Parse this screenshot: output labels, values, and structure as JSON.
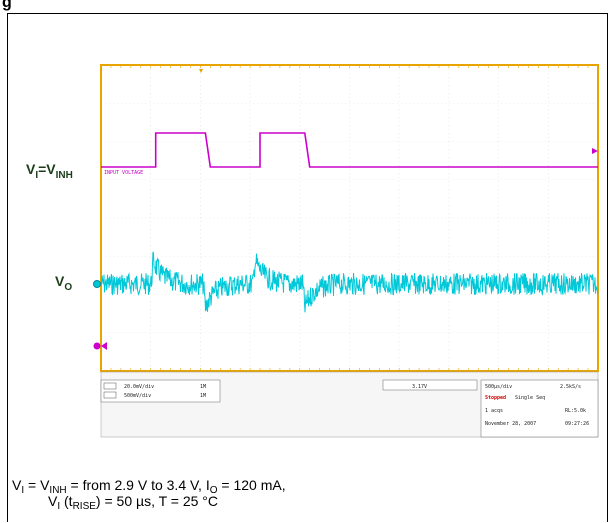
{
  "figure": {
    "title": "g",
    "labels": {
      "vi": {
        "main": "V",
        "sub1": "I",
        "eq": "=V",
        "sub2": "INH"
      },
      "vo": {
        "main": "V",
        "sub": "O"
      }
    },
    "trace_annotation": "INPUT VOLTAGE",
    "caption": {
      "line1": {
        "a": "V",
        "a_sub": "I",
        "b": " = V",
        "b_sub": "INH",
        "c": " = from 2.9 V to 3.4 V, I",
        "c_sub": "O",
        "d": " = 120 mA,"
      },
      "line2": {
        "a": "V",
        "a_sub": "I",
        "b": " (t",
        "b_sub": "RISE",
        "c": ") = 50 µs, T = 25 °C"
      }
    },
    "colors": {
      "frame": "#e8a400",
      "vi_trace": "#cc00cc",
      "vo_trace": "#00c8d8",
      "grid": "#cccccc"
    }
  },
  "scope_readout": {
    "ch1_scale": "20.0mV/div",
    "ch2_scale": "500mV/div",
    "ch1_coupling": "1M",
    "ch2_coupling": "1M",
    "trigger": "3.17V",
    "timebase": "500µs/div",
    "samples": "2.5kS/s",
    "status": "Stopped",
    "mode": "Single Seq",
    "acqs": "1 acqs",
    "record": "RL:5.0k",
    "date": "November 28, 2007",
    "time": "09:27:26"
  },
  "chart_data": {
    "type": "line",
    "title": "",
    "xlabel": "",
    "ylabel": "",
    "xlim": [
      0,
      10
    ],
    "series": [
      {
        "name": "VI=VINH",
        "color": "#cc00cc",
        "x": [
          0,
          1,
          1,
          1.1,
          1.1,
          2.1,
          2.1,
          2.2,
          2.2,
          3.1,
          3.1,
          3.2,
          3.2,
          4.1,
          4.1,
          4.2,
          4.2,
          10
        ],
        "y": [
          2.9,
          2.9,
          2.9,
          2.9,
          3.4,
          3.4,
          3.4,
          2.9,
          2.9,
          2.9,
          2.9,
          2.9,
          3.4,
          3.4,
          3.4,
          2.9,
          2.9,
          2.9
        ]
      },
      {
        "name": "VO",
        "color": "#00c8d8",
        "events": [
          {
            "x": 1.05,
            "type": "overshoot"
          },
          {
            "x": 2.1,
            "type": "undershoot"
          },
          {
            "x": 3.1,
            "type": "overshoot"
          },
          {
            "x": 4.1,
            "type": "undershoot"
          }
        ]
      }
    ]
  }
}
